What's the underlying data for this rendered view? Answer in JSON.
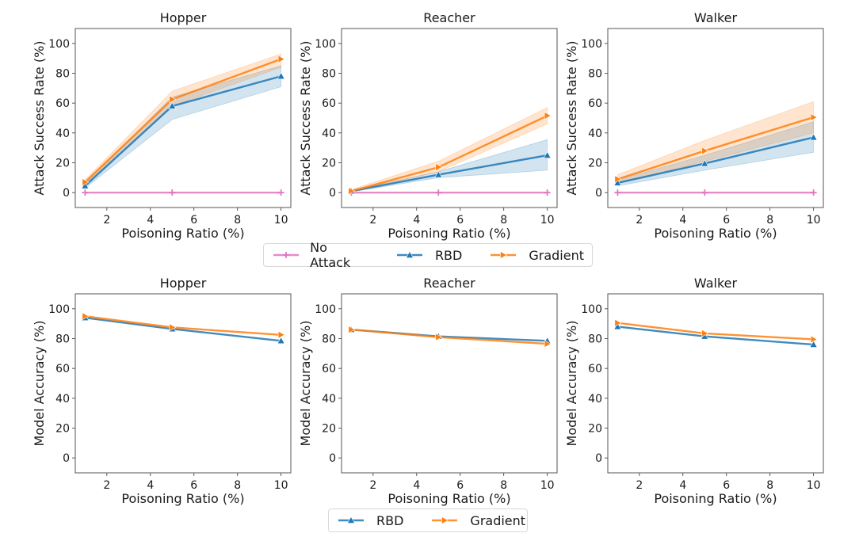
{
  "chart_data": [
    {
      "type": "line",
      "row": "top",
      "title": "Hopper",
      "xlabel": "Poisoning Ratio (%)",
      "ylabel": "Attack Success Rate (%)",
      "x": [
        1,
        5,
        10
      ],
      "xlim": [
        0.55,
        10.45
      ],
      "ylim": [
        -10,
        110
      ],
      "xticks": [
        2,
        4,
        6,
        8,
        10
      ],
      "yticks": [
        0,
        20,
        40,
        60,
        80,
        100
      ],
      "series": [
        {
          "name": "No Attack",
          "values": [
            0,
            0,
            0
          ],
          "band": null
        },
        {
          "name": "RBD",
          "values": [
            4.5,
            58,
            78
          ],
          "band": {
            "lower": [
              3,
              49,
              71
            ],
            "upper": [
              6,
              64,
              85
            ]
          }
        },
        {
          "name": "Gradient",
          "values": [
            7,
            62.5,
            89.5
          ],
          "band": {
            "lower": [
              5.5,
              58,
              84
            ],
            "upper": [
              8.5,
              68,
              93
            ]
          }
        }
      ]
    },
    {
      "type": "line",
      "row": "top",
      "title": "Reacher",
      "xlabel": "Poisoning Ratio (%)",
      "ylabel": "Attack Success Rate (%)",
      "x": [
        1,
        5,
        10
      ],
      "xlim": [
        0.55,
        10.45
      ],
      "ylim": [
        -10,
        110
      ],
      "xticks": [
        2,
        4,
        6,
        8,
        10
      ],
      "yticks": [
        0,
        20,
        40,
        60,
        80,
        100
      ],
      "series": [
        {
          "name": "No Attack",
          "values": [
            0,
            0,
            0
          ],
          "band": null
        },
        {
          "name": "RBD",
          "values": [
            1,
            12,
            25
          ],
          "band": {
            "lower": [
              0.5,
              10,
              15
            ],
            "upper": [
              1.5,
              14,
              35.5
            ]
          }
        },
        {
          "name": "Gradient",
          "values": [
            1,
            17,
            51.5
          ],
          "band": {
            "lower": [
              0.5,
              14,
              46
            ],
            "upper": [
              2,
              21,
              57
            ]
          }
        }
      ]
    },
    {
      "type": "line",
      "row": "top",
      "title": "Walker",
      "xlabel": "Poisoning Ratio (%)",
      "ylabel": "Attack Success Rate (%)",
      "x": [
        1,
        5,
        10
      ],
      "xlim": [
        0.55,
        10.45
      ],
      "ylim": [
        -10,
        110
      ],
      "xticks": [
        2,
        4,
        6,
        8,
        10
      ],
      "yticks": [
        0,
        20,
        40,
        60,
        80,
        100
      ],
      "series": [
        {
          "name": "No Attack",
          "values": [
            0,
            0,
            0
          ],
          "band": null
        },
        {
          "name": "RBD",
          "values": [
            6.5,
            19.5,
            37
          ],
          "band": {
            "lower": [
              4.5,
              15,
              27
            ],
            "upper": [
              8.5,
              25,
              47.5
            ]
          }
        },
        {
          "name": "Gradient",
          "values": [
            9,
            28,
            50.5
          ],
          "band": {
            "lower": [
              6,
              21,
              40
            ],
            "upper": [
              12,
              35,
              61
            ]
          }
        }
      ]
    },
    {
      "type": "line",
      "row": "bottom",
      "title": "Hopper",
      "xlabel": "Poisoning Ratio (%)",
      "ylabel": "Model Accuracy (%)",
      "x": [
        1,
        5,
        10
      ],
      "xlim": [
        0.55,
        10.45
      ],
      "ylim": [
        -10,
        110
      ],
      "xticks": [
        2,
        4,
        6,
        8,
        10
      ],
      "yticks": [
        0,
        20,
        40,
        60,
        80,
        100
      ],
      "series": [
        {
          "name": "RBD",
          "values": [
            94,
            86.5,
            78.5
          ],
          "band": null
        },
        {
          "name": "Gradient",
          "values": [
            95,
            87.5,
            82.5
          ],
          "band": null
        }
      ]
    },
    {
      "type": "line",
      "row": "bottom",
      "title": "Reacher",
      "xlabel": "Poisoning Ratio (%)",
      "ylabel": "Model Accuracy (%)",
      "x": [
        1,
        5,
        10
      ],
      "xlim": [
        0.55,
        10.45
      ],
      "ylim": [
        -10,
        110
      ],
      "xticks": [
        2,
        4,
        6,
        8,
        10
      ],
      "yticks": [
        0,
        20,
        40,
        60,
        80,
        100
      ],
      "series": [
        {
          "name": "RBD",
          "values": [
            86,
            81.5,
            78.5
          ],
          "band": null
        },
        {
          "name": "Gradient",
          "values": [
            86,
            81,
            76.5
          ],
          "band": null
        }
      ]
    },
    {
      "type": "line",
      "row": "bottom",
      "title": "Walker",
      "xlabel": "Poisoning Ratio (%)",
      "ylabel": "Model Accuracy (%)",
      "x": [
        1,
        5,
        10
      ],
      "xlim": [
        0.55,
        10.45
      ],
      "ylim": [
        -10,
        110
      ],
      "xticks": [
        2,
        4,
        6,
        8,
        10
      ],
      "yticks": [
        0,
        20,
        40,
        60,
        80,
        100
      ],
      "series": [
        {
          "name": "RBD",
          "values": [
            88,
            81.5,
            76
          ],
          "band": null
        },
        {
          "name": "Gradient",
          "values": [
            90.5,
            83.5,
            79.5
          ],
          "band": null
        }
      ]
    }
  ],
  "series_styles": {
    "No Attack": {
      "color": "#e377c2",
      "marker": "plus"
    },
    "RBD": {
      "color": "#1f77b4",
      "marker": "triangle-up"
    },
    "Gradient": {
      "color": "#ff7f0e",
      "marker": "triangle-right"
    }
  },
  "legends": {
    "top": [
      "No Attack",
      "RBD",
      "Gradient"
    ],
    "bottom": [
      "RBD",
      "Gradient"
    ]
  }
}
